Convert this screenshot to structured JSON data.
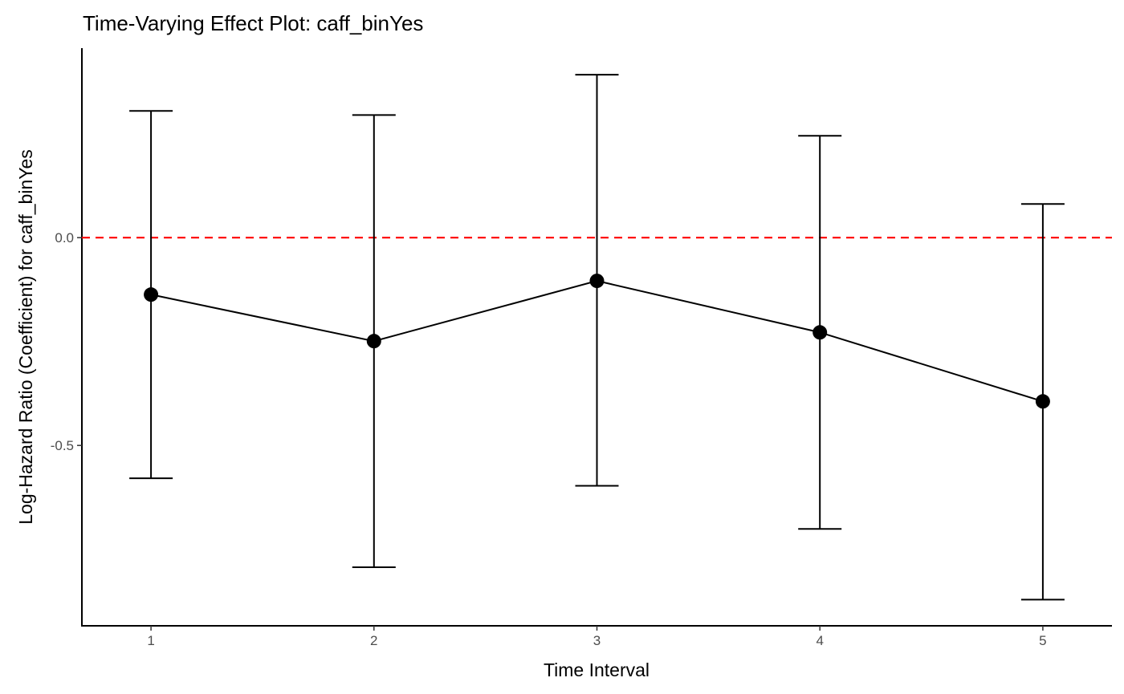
{
  "chart_data": {
    "type": "line",
    "title": "Time-Varying Effect Plot: caff_binYes",
    "xlabel": "Time Interval",
    "ylabel": "Log-Hazard Ratio (Coefficient) for caff_binYes",
    "x": [
      1,
      2,
      3,
      4,
      5
    ],
    "x_tick_labels": [
      "1",
      "2",
      "3",
      "4",
      "5"
    ],
    "y_ticks": [
      0.0,
      -0.5
    ],
    "y_tick_labels": [
      "0.0",
      "-0.5"
    ],
    "xlim": [
      0.69,
      5.31
    ],
    "ylim": [
      -0.934,
      0.456
    ],
    "series": [
      {
        "name": "coefficient",
        "values": [
          -0.137,
          -0.249,
          -0.104,
          -0.228,
          -0.394
        ],
        "lower": [
          -0.579,
          -0.793,
          -0.597,
          -0.701,
          -0.871
        ],
        "upper": [
          0.305,
          0.295,
          0.392,
          0.245,
          0.081
        ],
        "color": "#000000"
      }
    ],
    "reference_line": {
      "y": 0,
      "style": "dashed",
      "color": "#ff0000"
    },
    "grid": false,
    "legend": "none"
  }
}
